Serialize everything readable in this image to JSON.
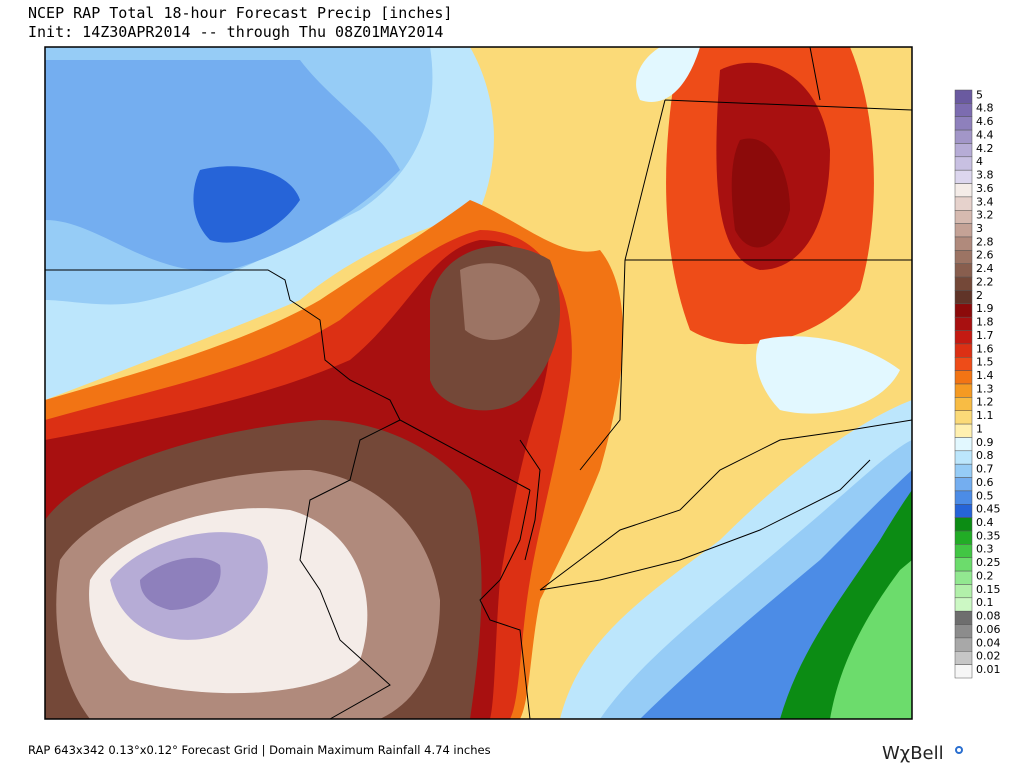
{
  "header": {
    "title": "NCEP RAP Total 18-hour Forecast Precip [inches]",
    "subtitle": "Init: 14Z30APR2014 -- through Thu 08Z01MAY2014"
  },
  "colorbar": [
    {
      "label": "5",
      "color": "#6a5aa0"
    },
    {
      "label": "4.8",
      "color": "#7c6cb0"
    },
    {
      "label": "4.6",
      "color": "#8e80bc"
    },
    {
      "label": "4.4",
      "color": "#a296c8"
    },
    {
      "label": "4.2",
      "color": "#b6acd6"
    },
    {
      "label": "4",
      "color": "#c8c0e2"
    },
    {
      "label": "3.8",
      "color": "#dcd6ee"
    },
    {
      "label": "3.6",
      "color": "#f4ece8"
    },
    {
      "label": "3.4",
      "color": "#e6d2cc"
    },
    {
      "label": "3.2",
      "color": "#d6bab0"
    },
    {
      "label": "3",
      "color": "#c4a296"
    },
    {
      "label": "2.8",
      "color": "#b08a7c"
    },
    {
      "label": "2.6",
      "color": "#9c7464"
    },
    {
      "label": "2.4",
      "color": "#885e4e"
    },
    {
      "label": "2.2",
      "color": "#744838"
    },
    {
      "label": "2",
      "color": "#603428"
    },
    {
      "label": "1.9",
      "color": "#8c0a0a"
    },
    {
      "label": "1.8",
      "color": "#a81010"
    },
    {
      "label": "1.7",
      "color": "#c41a12"
    },
    {
      "label": "1.6",
      "color": "#dc3014"
    },
    {
      "label": "1.5",
      "color": "#ee4c18"
    },
    {
      "label": "1.4",
      "color": "#f27414"
    },
    {
      "label": "1.3",
      "color": "#f59a22"
    },
    {
      "label": "1.2",
      "color": "#f8bc44"
    },
    {
      "label": "1.1",
      "color": "#fbda78"
    },
    {
      "label": "1",
      "color": "#fff0b0"
    },
    {
      "label": "0.9",
      "color": "#e2f8ff"
    },
    {
      "label": "0.8",
      "color": "#bce6fc"
    },
    {
      "label": "0.7",
      "color": "#96ccf6"
    },
    {
      "label": "0.6",
      "color": "#74aef0"
    },
    {
      "label": "0.5",
      "color": "#4c8ce6"
    },
    {
      "label": "0.45",
      "color": "#2664d8"
    },
    {
      "label": "0.4",
      "color": "#0c8c14"
    },
    {
      "label": "0.35",
      "color": "#22ac26"
    },
    {
      "label": "0.3",
      "color": "#42c644"
    },
    {
      "label": "0.25",
      "color": "#6cdc6c"
    },
    {
      "label": "0.2",
      "color": "#92e890"
    },
    {
      "label": "0.15",
      "color": "#b2f0aa"
    },
    {
      "label": "0.1",
      "color": "#ccf8c4"
    },
    {
      "label": "0.08",
      "color": "#6e6e6e"
    },
    {
      "label": "0.06",
      "color": "#8c8c8c"
    },
    {
      "label": "0.04",
      "color": "#a8a8a8"
    },
    {
      "label": "0.02",
      "color": "#c6c6c6"
    },
    {
      "label": "0.01",
      "color": "#f6f6f6"
    }
  ],
  "footer": {
    "info": "RAP 643x342 0.13°x0.12° Forecast Grid  |  Domain Maximum Rainfall  4.74 inches",
    "logo": "WχBell"
  }
}
